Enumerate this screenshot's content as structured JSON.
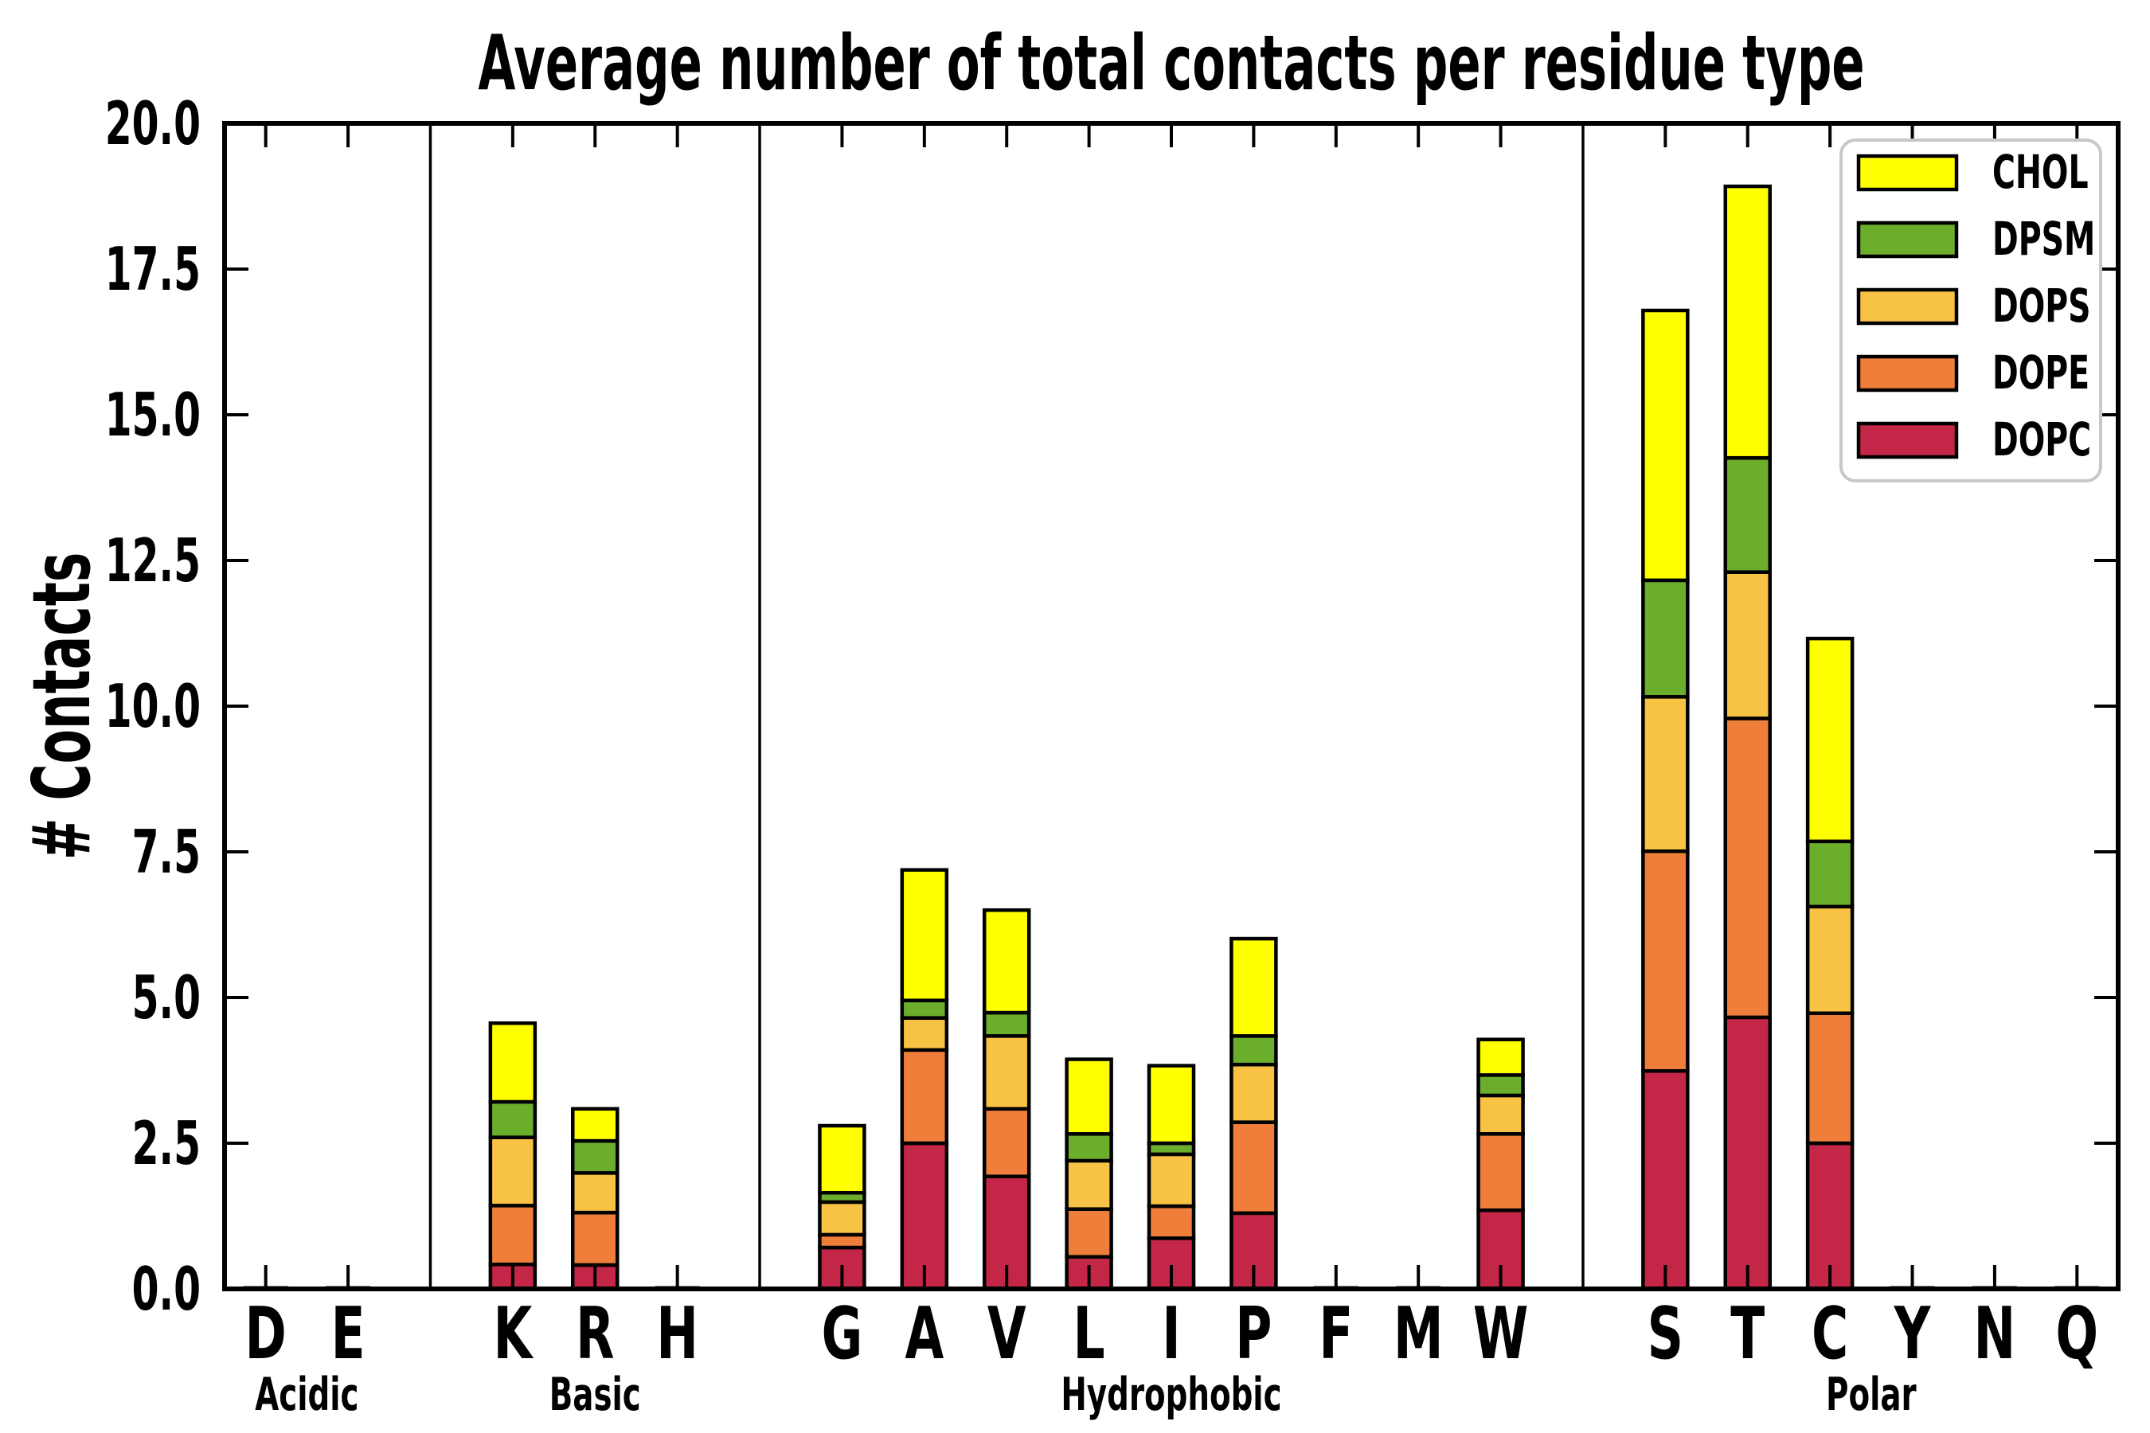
{
  "chart_data": {
    "type": "bar",
    "variant": "stacked-vertical",
    "title": "Average number of total contacts per residue type",
    "ylabel": "# Contacts",
    "xlabel": "",
    "ylim": [
      0.0,
      20.0
    ],
    "ytick_labels": [
      "0.0",
      "2.5",
      "5.0",
      "7.5",
      "10.0",
      "12.5",
      "15.0",
      "17.5",
      "20.0"
    ],
    "ytick_values": [
      0.0,
      2.5,
      5.0,
      7.5,
      10.0,
      12.5,
      15.0,
      17.5,
      20.0
    ],
    "grid": "off",
    "legend_position": "upper-right-inside",
    "legend_entries": [
      "CHOL",
      "DPSM",
      "DOPS",
      "DOPE",
      "DOPC"
    ],
    "stack_order_bottom_to_top": [
      "DOPC",
      "DOPE",
      "DOPS",
      "DPSM",
      "CHOL"
    ],
    "colors": {
      "CHOL": "#FFFF00",
      "DPSM": "#6BAE2C",
      "DOPS": "#F8C244",
      "DOPE": "#EE7E3A",
      "DOPC": "#C32646",
      "bar_edge": "#000000",
      "axis": "#000000",
      "legend_border": "#C8C8C8",
      "background": "#FFFFFF"
    },
    "groups": [
      {
        "label": "Acidic",
        "residues": [
          "D",
          "E"
        ]
      },
      {
        "label": "Basic",
        "residues": [
          "K",
          "R",
          "H"
        ]
      },
      {
        "label": "Hydrophobic",
        "residues": [
          "G",
          "A",
          "V",
          "L",
          "I",
          "P",
          "F",
          "M",
          "W"
        ]
      },
      {
        "label": "Polar",
        "residues": [
          "S",
          "T",
          "C",
          "Y",
          "N",
          "Q"
        ]
      }
    ],
    "values": {
      "D": {
        "DOPC": 0,
        "DOPE": 0,
        "DOPS": 0,
        "DPSM": 0,
        "CHOL": 0
      },
      "E": {
        "DOPC": 0,
        "DOPE": 0,
        "DOPS": 0,
        "DPSM": 0,
        "CHOL": 0
      },
      "K": {
        "DOPC": 0.42,
        "DOPE": 1.01,
        "DOPS": 1.17,
        "DPSM": 0.61,
        "CHOL": 1.35
      },
      "R": {
        "DOPC": 0.41,
        "DOPE": 0.9,
        "DOPS": 0.68,
        "DPSM": 0.55,
        "CHOL": 0.55
      },
      "H": {
        "DOPC": 0,
        "DOPE": 0,
        "DOPS": 0,
        "DPSM": 0,
        "CHOL": 0
      },
      "G": {
        "DOPC": 0.71,
        "DOPE": 0.22,
        "DOPS": 0.56,
        "DPSM": 0.16,
        "CHOL": 1.15
      },
      "A": {
        "DOPC": 2.5,
        "DOPE": 1.6,
        "DOPS": 0.55,
        "DPSM": 0.3,
        "CHOL": 2.24
      },
      "V": {
        "DOPC": 1.93,
        "DOPE": 1.16,
        "DOPS": 1.25,
        "DPSM": 0.4,
        "CHOL": 1.76
      },
      "L": {
        "DOPC": 0.55,
        "DOPE": 0.82,
        "DOPS": 0.83,
        "DPSM": 0.46,
        "CHOL": 1.28
      },
      "I": {
        "DOPC": 0.87,
        "DOPE": 0.55,
        "DOPS": 0.89,
        "DPSM": 0.19,
        "CHOL": 1.33
      },
      "P": {
        "DOPC": 1.3,
        "DOPE": 1.56,
        "DOPS": 0.99,
        "DPSM": 0.49,
        "CHOL": 1.67
      },
      "F": {
        "DOPC": 0,
        "DOPE": 0,
        "DOPS": 0,
        "DPSM": 0,
        "CHOL": 0
      },
      "M": {
        "DOPC": 0,
        "DOPE": 0,
        "DOPS": 0,
        "DPSM": 0,
        "CHOL": 0
      },
      "W": {
        "DOPC": 1.35,
        "DOPE": 1.31,
        "DOPS": 0.66,
        "DPSM": 0.35,
        "CHOL": 0.61
      },
      "S": {
        "DOPC": 3.74,
        "DOPE": 3.77,
        "DOPS": 2.65,
        "DPSM": 2.0,
        "CHOL": 4.63
      },
      "T": {
        "DOPC": 4.66,
        "DOPE": 5.13,
        "DOPS": 2.51,
        "DPSM": 1.96,
        "CHOL": 4.66
      },
      "C": {
        "DOPC": 2.5,
        "DOPE": 2.23,
        "DOPS": 1.83,
        "DPSM": 1.12,
        "CHOL": 3.48
      },
      "Y": {
        "DOPC": 0,
        "DOPE": 0,
        "DOPS": 0,
        "DPSM": 0,
        "CHOL": 0
      },
      "N": {
        "DOPC": 0,
        "DOPE": 0,
        "DOPS": 0,
        "DPSM": 0,
        "CHOL": 0
      },
      "Q": {
        "DOPC": 0,
        "DOPE": 0,
        "DOPS": 0,
        "DPSM": 0,
        "CHOL": 0
      }
    }
  }
}
